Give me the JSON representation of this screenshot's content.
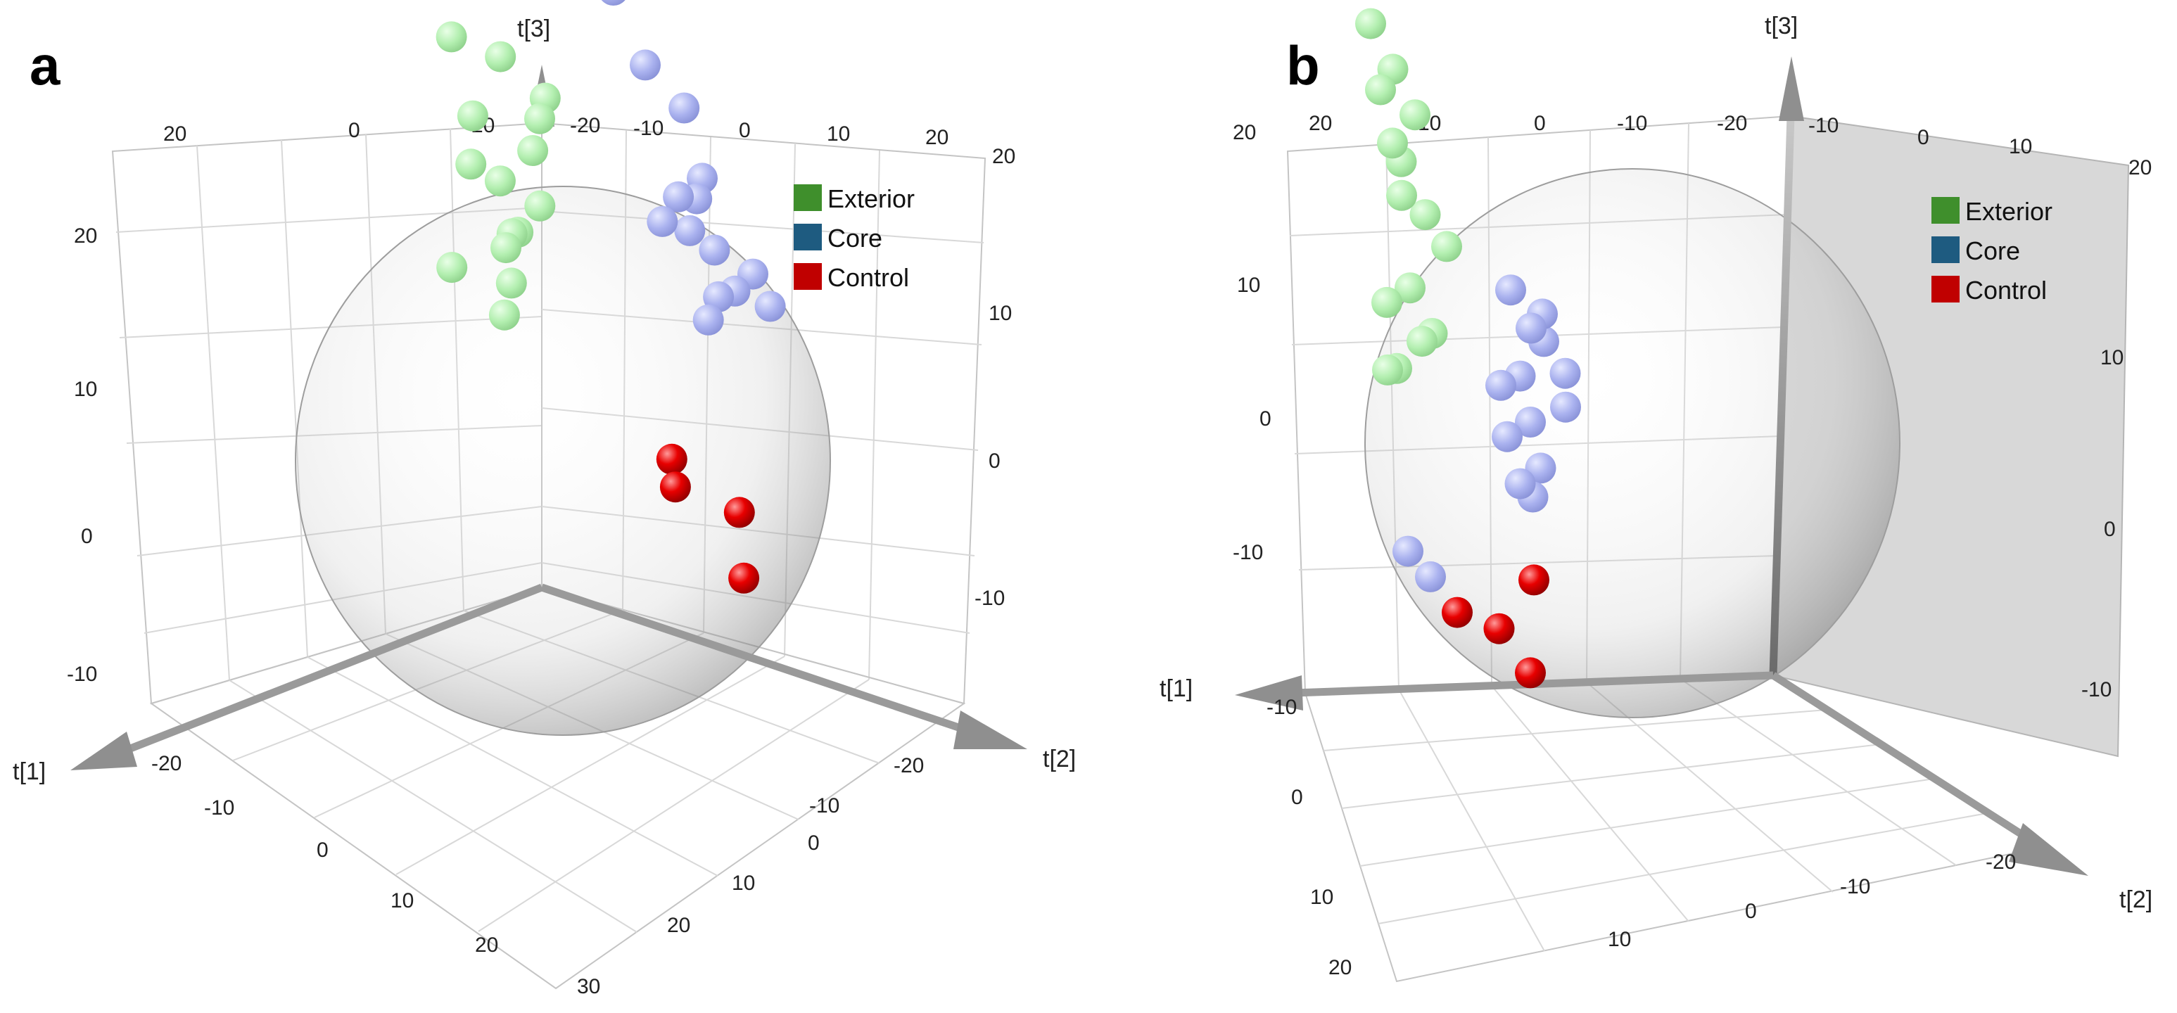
{
  "chart_data": [
    {
      "panel": "a",
      "type": "scatter",
      "axes": {
        "x": "t[1]",
        "y": "t[2]",
        "z": "t[3]"
      },
      "ticks": {
        "top_left": [
          "20",
          "0",
          "-20"
        ],
        "top_right": [
          "-20",
          "-10",
          "0",
          "10",
          "20"
        ],
        "left": [
          "20",
          "10",
          "0",
          "-10"
        ],
        "right": [
          "20",
          "10",
          "0",
          "-10"
        ],
        "floor_left": [
          "-20",
          "-10",
          "0",
          "10",
          "20",
          "30"
        ],
        "floor_right": [
          "-20",
          "-10",
          "0",
          "10",
          "20"
        ]
      },
      "legend": [
        {
          "label": "Exterior",
          "color": "#3f8f2c"
        },
        {
          "label": "Core",
          "color": "#1e5b80"
        },
        {
          "label": "Control",
          "color": "#c00000"
        }
      ],
      "series": [
        {
          "name": "Exterior",
          "color": "#b3efb0",
          "points": [
            [
              -14,
              -20,
              4
            ],
            [
              -16,
              -18,
              3
            ],
            [
              -12,
              -17,
              1
            ],
            [
              -15,
              -15,
              -1
            ],
            [
              -13,
              -13,
              -3
            ],
            [
              -17,
              -19,
              -4
            ],
            [
              -11,
              -14,
              -5
            ],
            [
              -16,
              -17,
              -6
            ],
            [
              -14,
              -16,
              -8
            ],
            [
              -12,
              -15,
              -9
            ],
            [
              -18,
              -19,
              -7
            ],
            [
              -13,
              -18,
              -2
            ],
            [
              -15,
              -14,
              2
            ],
            [
              -11,
              -18,
              -7
            ],
            [
              -17,
              -16,
              0
            ]
          ]
        },
        {
          "name": "Core",
          "color": "#aab2ef",
          "points": [
            [
              -6,
              0,
              14
            ],
            [
              -5,
              -1,
              13
            ],
            [
              -4,
              2,
              10
            ],
            [
              -5,
              4,
              8
            ],
            [
              -4,
              6,
              5
            ],
            [
              -3,
              5,
              4
            ],
            [
              -6,
              4,
              3
            ],
            [
              -4,
              3,
              2
            ],
            [
              -5,
              6,
              1
            ],
            [
              -6,
              8,
              0
            ],
            [
              -4,
              7,
              -1
            ],
            [
              -3,
              9,
              0
            ],
            [
              -5,
              10,
              -1
            ],
            [
              -3,
              7,
              -2
            ],
            [
              -4,
              5,
              2
            ]
          ]
        },
        {
          "name": "Control",
          "color": "#e80000",
          "points": [
            [
              2,
              8,
              -8
            ],
            [
              3,
              9,
              -9
            ],
            [
              6,
              16,
              -8
            ],
            [
              7,
              17,
              -11
            ]
          ]
        }
      ]
    },
    {
      "panel": "b",
      "type": "scatter",
      "axes": {
        "x": "t[1]",
        "y": "t[2]",
        "z": "t[3]"
      },
      "ticks": {
        "top_left": [
          "20",
          "20",
          "10",
          "0",
          "-10",
          "-20"
        ],
        "top_right": [
          "-10",
          "0",
          "10",
          "20"
        ],
        "left": [
          "10",
          "0",
          "-10"
        ],
        "right": [
          "10",
          "0",
          "-10"
        ],
        "floor_left": [
          "-10",
          "0",
          "10",
          "20"
        ],
        "floor_right": [
          "-20",
          "-10",
          "0",
          "10"
        ]
      },
      "legend": [
        {
          "label": "Exterior",
          "color": "#3f8f2c"
        },
        {
          "label": "Core",
          "color": "#1e5b80"
        },
        {
          "label": "Control",
          "color": "#c00000"
        }
      ],
      "series": [
        {
          "name": "Exterior",
          "color": "#b3efb0",
          "points": [
            [
              -14,
              -20,
              10
            ],
            [
              -15,
              -19,
              8
            ],
            [
              -16,
              -18,
              6
            ],
            [
              -14,
              -17,
              4
            ],
            [
              -15,
              -18,
              2
            ],
            [
              -17,
              -16,
              0
            ],
            [
              -14,
              -16,
              -2
            ],
            [
              -15,
              -15,
              -4
            ],
            [
              -16,
              -17,
              -5
            ],
            [
              -13,
              -16,
              -6
            ],
            [
              -15,
              -19,
              -7
            ],
            [
              -17,
              -18,
              1
            ],
            [
              -14,
              -19,
              7
            ],
            [
              -16,
              -20,
              4
            ],
            [
              -13,
              -17,
              -3
            ]
          ]
        },
        {
          "name": "Core",
          "color": "#aab2ef",
          "points": [
            [
              -4,
              4,
              4
            ],
            [
              -5,
              6,
              2
            ],
            [
              -4,
              5,
              0
            ],
            [
              -3,
              7,
              3
            ],
            [
              -5,
              8,
              1
            ],
            [
              -4,
              6,
              -2
            ],
            [
              -3,
              5,
              -3
            ],
            [
              -6,
              7,
              -1
            ],
            [
              -7,
              0,
              -2
            ],
            [
              -8,
              2,
              -7
            ],
            [
              -6,
              3,
              -6
            ],
            [
              -5,
              -6,
              -12
            ],
            [
              -6,
              -5,
              -13
            ],
            [
              -3,
              8,
              4
            ],
            [
              -4,
              7,
              -4
            ]
          ]
        },
        {
          "name": "Control",
          "color": "#e80000",
          "points": [
            [
              0,
              4,
              -12
            ],
            [
              2,
              10,
              -11
            ],
            [
              3,
              14,
              -12
            ],
            [
              1,
              12,
              -8
            ]
          ]
        }
      ]
    }
  ]
}
